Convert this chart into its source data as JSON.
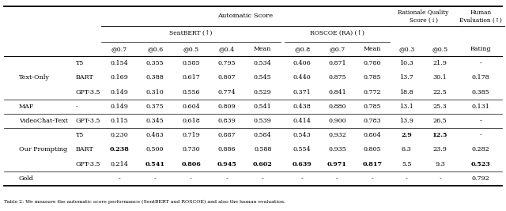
{
  "rows": [
    {
      "group": "Text-Only",
      "model": "T5",
      "vals": [
        "0.154",
        "0.355",
        "0.585",
        "0.795",
        "0.534",
        "0.406",
        "0.871",
        "0.780",
        "10.3",
        "21.9",
        "-"
      ],
      "bold": []
    },
    {
      "group": "",
      "model": "BART",
      "vals": [
        "0.169",
        "0.388",
        "0.617",
        "0.807",
        "0.545",
        "0.440",
        "0.875",
        "0.785",
        "13.7",
        "30.1",
        "0.178"
      ],
      "bold": []
    },
    {
      "group": "",
      "model": "GPT-3.5",
      "vals": [
        "0.149",
        "0.310",
        "0.556",
        "0.774",
        "0.529",
        "0.371",
        "0.841",
        "0.772",
        "18.8",
        "22.5",
        "0.385"
      ],
      "bold": []
    },
    {
      "group": "MAF",
      "model": "-",
      "vals": [
        "0.149",
        "0.375",
        "0.604",
        "0.809",
        "0.541",
        "0.438",
        "0.880",
        "0.785",
        "13.1",
        "25.3",
        "0.131"
      ],
      "bold": []
    },
    {
      "group": "VideoChat-Text",
      "model": "GPT-3.5",
      "vals": [
        "0.115",
        "0.345",
        "0.618",
        "0.839",
        "0.539",
        "0.414",
        "0.900",
        "0.783",
        "13.9",
        "26.5",
        "-"
      ],
      "bold": []
    },
    {
      "group": "Our Prompting",
      "model": "T5",
      "vals": [
        "0.230",
        "0.483",
        "0.719",
        "0.887",
        "0.584",
        "0.543",
        "0.932",
        "0.804",
        "2.9",
        "12.5",
        "-"
      ],
      "bold": [
        8,
        9
      ]
    },
    {
      "group": "",
      "model": "BART",
      "vals": [
        "0.238",
        "0.500",
        "0.730",
        "0.886",
        "0.588",
        "0.554",
        "0.935",
        "0.805",
        "6.3",
        "23.9",
        "0.282"
      ],
      "bold": [
        0
      ]
    },
    {
      "group": "",
      "model": "GPT-3.5",
      "vals": [
        "0.214",
        "0.541",
        "0.806",
        "0.945",
        "0.602",
        "0.639",
        "0.971",
        "0.817",
        "5.5",
        "9.3",
        "0.523"
      ],
      "bold": [
        1,
        2,
        3,
        4,
        5,
        6,
        7,
        10
      ]
    },
    {
      "group": "Gold",
      "model": "",
      "vals": [
        "-",
        "-",
        "-",
        "-",
        "-",
        "-",
        "-",
        "-",
        "-",
        "-",
        "0.792"
      ],
      "bold": []
    }
  ],
  "group_spans": {
    "0": 3,
    "3": 1,
    "4": 1,
    "5": 3,
    "8": 1
  },
  "group_names": {
    "0": "Text-Only",
    "3": "MAF",
    "4": "VideoChat-Text",
    "5": "Our Prompting",
    "8": "Gold"
  },
  "separator_rows": [
    3,
    4,
    5,
    8
  ],
  "caption": "Table 2: We measure the automatic score performance (SentBERT and ROSCOE) and also the human evaluation.",
  "col_headers": [
    "@0.7",
    "@0.6",
    "@0.5",
    "@0.4",
    "Mean",
    "@0.8",
    "@0.7",
    "Mean",
    "@0.3",
    "@0.5",
    "Rating"
  ],
  "sentbert_label": "SentBERT (↑)",
  "roscoe_label": "ROSCOE (RA) (↑)",
  "auto_label": "Automatic Score",
  "rationale_label": "Rationale Quality\nScore (↓)",
  "human_label": "Human\nEvaluation (↑)",
  "bg_color": "#ffffff"
}
